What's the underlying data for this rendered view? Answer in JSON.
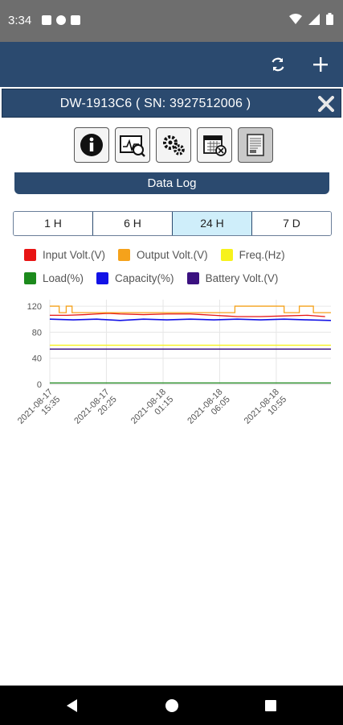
{
  "status_bar": {
    "time": "3:34",
    "icons_left": [
      "notification-a-icon",
      "notification-p-icon",
      "sd-card-icon"
    ],
    "icons_right": [
      "wifi-icon",
      "signal-icon",
      "battery-icon"
    ]
  },
  "app_bar": {
    "actions": [
      "refresh-icon",
      "add-icon"
    ]
  },
  "device": {
    "title": "DW-1913C6 ( SN: 3927512006 )"
  },
  "toolbar": {
    "items": [
      "info-icon",
      "monitor-icon",
      "settings-gears-icon",
      "schedule-icon",
      "data-log-icon"
    ],
    "active": 4
  },
  "section": {
    "title": "Data Log"
  },
  "ranges": {
    "options": [
      "1 H",
      "6 H",
      "24 H",
      "7 D"
    ],
    "selected": 2
  },
  "legend": [
    {
      "label": "Input Volt.(V)",
      "color": "#e81414"
    },
    {
      "label": "Output Volt.(V)",
      "color": "#f5a21b"
    },
    {
      "label": "Freq.(Hz)",
      "color": "#f7f21c"
    },
    {
      "label": "Load(%)",
      "color": "#1c8a1c"
    },
    {
      "label": "Capacity(%)",
      "color": "#1212e6"
    },
    {
      "label": "Battery Volt.(V)",
      "color": "#3b1180"
    }
  ],
  "chart_data": {
    "type": "line",
    "ylim": [
      0,
      130
    ],
    "yticks": [
      "0",
      "40",
      "80",
      "120"
    ],
    "ytick_values": [
      0,
      40,
      80,
      120
    ],
    "x": [
      0,
      2,
      4,
      6,
      8,
      10,
      12,
      14,
      16,
      18,
      20,
      22,
      24
    ],
    "xticks": [
      {
        "value": 0,
        "label": "2021-08-17 15:35"
      },
      {
        "value": 4.83,
        "label": "2021-08-17 20:25"
      },
      {
        "value": 9.67,
        "label": "2021-08-18 01:15"
      },
      {
        "value": 14.5,
        "label": "2021-08-18 06:05"
      },
      {
        "value": 19.33,
        "label": "2021-08-18 10:55"
      }
    ],
    "grid": true,
    "series": [
      {
        "name": "Input Volt.(V)",
        "color": "#e81414",
        "x": [
          0,
          1.5,
          3,
          4,
          5,
          6,
          8,
          10,
          12,
          13,
          14,
          15,
          16,
          18,
          20,
          22,
          23.5
        ],
        "y": [
          106,
          106,
          107,
          108,
          109,
          108,
          107,
          108,
          108,
          107,
          106,
          105,
          104,
          104,
          105,
          106,
          104
        ]
      },
      {
        "name": "Output Volt.(V)",
        "color": "#f5a21b",
        "x": [
          0,
          0.8,
          0.8,
          1.4,
          1.4,
          1.9,
          1.9,
          2.2,
          2.2,
          15.8,
          15.8,
          17,
          17,
          20,
          20,
          21.3,
          21.3,
          22.5,
          22.5,
          23.2,
          23.2,
          24
        ],
        "y": [
          120,
          120,
          110,
          110,
          120,
          120,
          110,
          110,
          110,
          110,
          120,
          120,
          120,
          120,
          110,
          110,
          120,
          120,
          110,
          110,
          110,
          110
        ]
      },
      {
        "name": "Freq.(Hz)",
        "color": "#f7f21c",
        "x": [
          0,
          24
        ],
        "y": [
          60,
          60
        ]
      },
      {
        "name": "Load(%)",
        "color": "#1c8a1c",
        "x": [
          0,
          24
        ],
        "y": [
          2,
          2
        ]
      },
      {
        "name": "Capacity(%)",
        "color": "#1212e6",
        "x": [
          0,
          2,
          4,
          6,
          8,
          10,
          12,
          14,
          16,
          18,
          20,
          22,
          24
        ],
        "y": [
          100,
          99,
          100,
          98,
          100,
          99,
          100,
          99,
          100,
          99,
          100,
          99,
          98
        ]
      },
      {
        "name": "Battery Volt.(V)",
        "color": "#3b1180",
        "x": [
          0,
          24
        ],
        "y": [
          54,
          54
        ]
      }
    ]
  }
}
